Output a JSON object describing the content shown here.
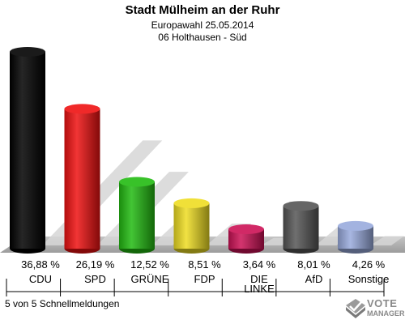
{
  "header": {
    "title": "Stadt Mülheim an der Ruhr",
    "subtitle1": "Europawahl 25.05.2014",
    "subtitle2": "06 Holthausen - Süd"
  },
  "footer": {
    "text": "5 von 5 Schnellmeldungen",
    "logo_line1": "VOTE",
    "logo_line2": "MANAGER"
  },
  "chart_data": {
    "type": "bar",
    "categories": [
      "CDU",
      "SPD",
      "GRÜNE",
      "FDP",
      "DIE LINKE",
      "AfD",
      "Sonstige"
    ],
    "category_lines": [
      [
        "CDU"
      ],
      [
        "SPD"
      ],
      [
        "GRÜNE"
      ],
      [
        "FDP"
      ],
      [
        "DIE",
        "LINKE"
      ],
      [
        "AfD"
      ],
      [
        "Sonstige"
      ]
    ],
    "values": [
      36.88,
      26.19,
      12.52,
      8.51,
      3.64,
      8.01,
      4.26
    ],
    "value_labels": [
      "36,88 %",
      "26,19 %",
      "12,52 %",
      "8,51 %",
      "3,64 %",
      "8,01 %",
      "4,26 %"
    ],
    "colors": [
      "#000000",
      "#ee1111",
      "#22bb11",
      "#eedd22",
      "#cc1155",
      "#555555",
      "#99aadd"
    ],
    "ylim": [
      0,
      40
    ],
    "grid": false,
    "legend": "none"
  }
}
